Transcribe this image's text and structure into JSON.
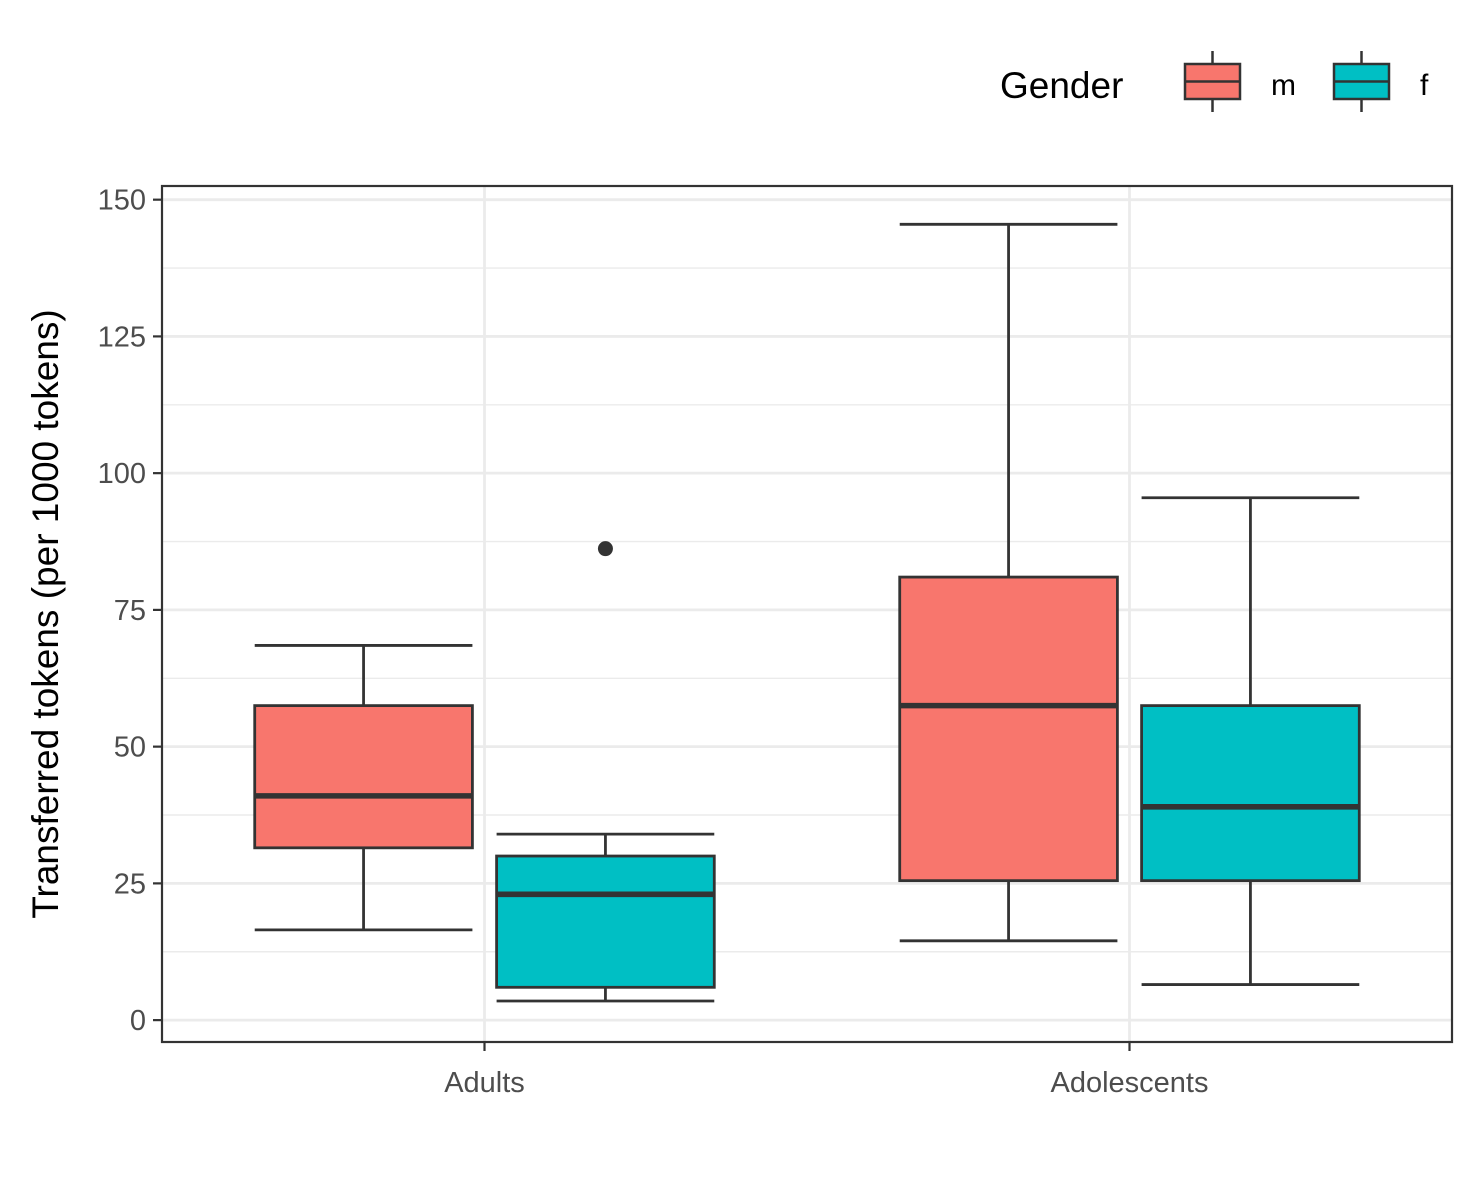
{
  "chart_data": {
    "type": "boxplot",
    "ylabel": "Transferred tokens (per 1000 tokens)",
    "xlabel": "",
    "ylim": [
      -4,
      152.5
    ],
    "yticks": [
      0,
      25,
      50,
      75,
      100,
      125,
      150
    ],
    "categories": [
      "Adults",
      "Adolescents"
    ],
    "grid": true,
    "legend": {
      "title": "Gender",
      "position": "top-right",
      "entries": [
        {
          "label": "m",
          "color": "#F8766D"
        },
        {
          "label": "f",
          "color": "#00BFC4"
        }
      ]
    },
    "series": [
      {
        "name": "m",
        "color": "#F8766D",
        "boxes": [
          {
            "category": "Adults",
            "whisker_low": 16.5,
            "q1": 31.5,
            "median": 41,
            "q3": 57.5,
            "whisker_high": 68.5,
            "outliers": []
          },
          {
            "category": "Adolescents",
            "whisker_low": 14.5,
            "q1": 25.5,
            "median": 57.5,
            "q3": 81,
            "whisker_high": 145.5,
            "outliers": []
          }
        ]
      },
      {
        "name": "f",
        "color": "#00BFC4",
        "boxes": [
          {
            "category": "Adults",
            "whisker_low": 3.5,
            "q1": 6,
            "median": 23,
            "q3": 30,
            "whisker_high": 34,
            "outliers": [
              86.2
            ]
          },
          {
            "category": "Adolescents",
            "whisker_low": 6.5,
            "q1": 25.5,
            "median": 39,
            "q3": 57.5,
            "whisker_high": 95.5,
            "outliers": []
          }
        ]
      }
    ]
  }
}
